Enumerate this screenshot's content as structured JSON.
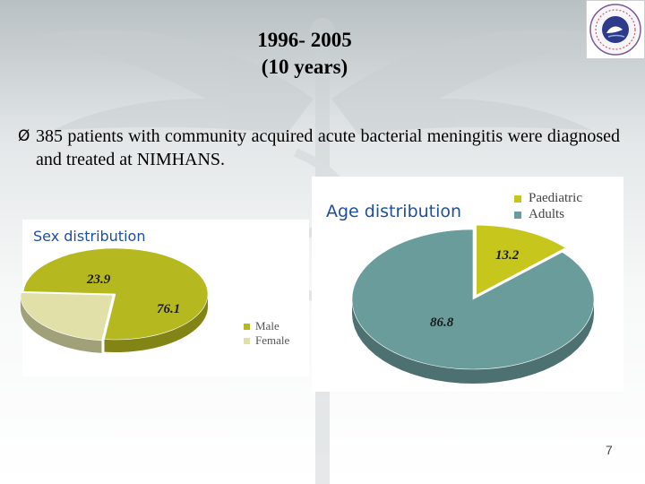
{
  "slide": {
    "title_line1": "1996- 2005",
    "title_line2": "(10 years)",
    "bullet_symbol": "Ø",
    "bullet_text": "385 patients with community acquired acute bacterial meningitis were diagnosed and treated at NIMHANS.",
    "slide_number": "7"
  },
  "colors": {
    "male": "#b6b81f",
    "female": "#e0e0a8",
    "paediatric": "#c6c61c",
    "adults": "#6b9c9c"
  },
  "chart_data": [
    {
      "type": "pie",
      "title": "Sex distribution",
      "categories": [
        "Male",
        "Female"
      ],
      "values": [
        76.1,
        23.9
      ],
      "labels": [
        "76.1",
        "23.9"
      ],
      "legend": "right"
    },
    {
      "type": "pie",
      "title": "Age distribution",
      "categories": [
        "Paediatric",
        "Adults"
      ],
      "values": [
        13.2,
        86.8
      ],
      "labels": [
        "13.2",
        "86.8"
      ],
      "legend": "top-right"
    }
  ]
}
